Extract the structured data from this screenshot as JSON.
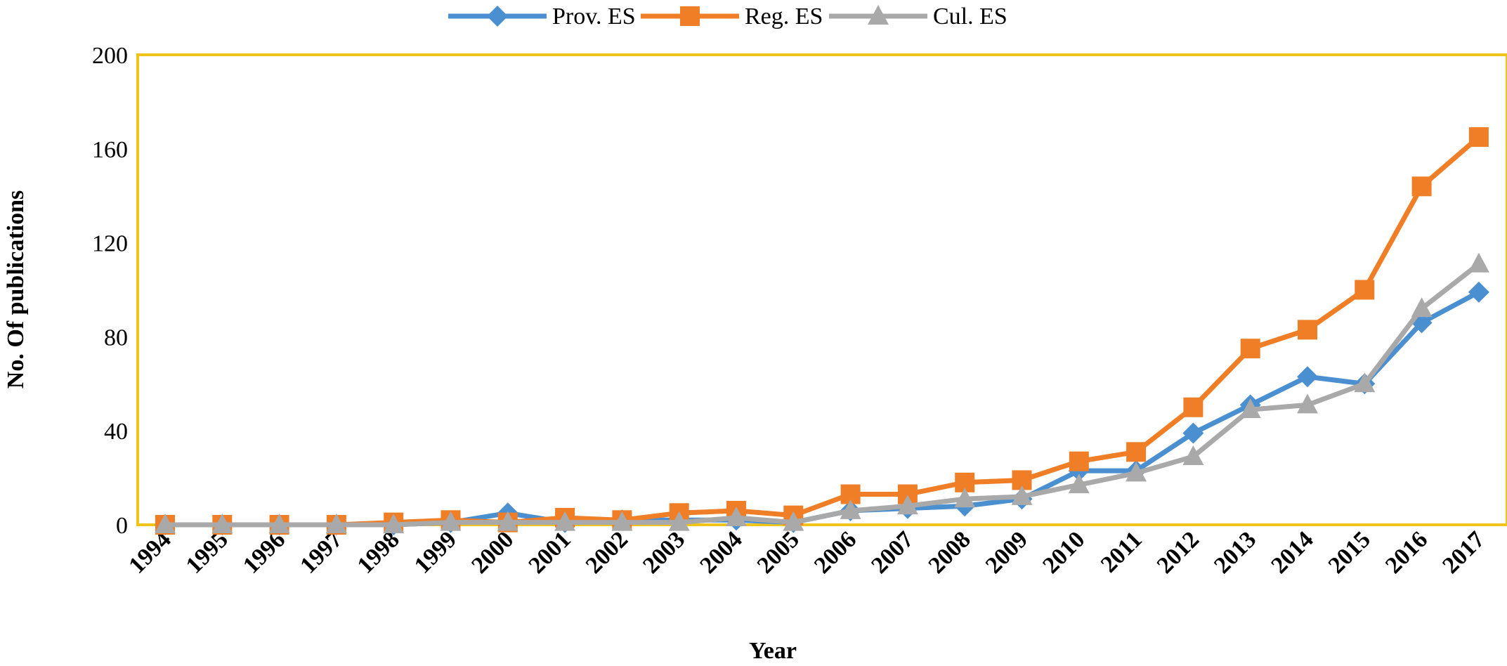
{
  "chart_data": {
    "type": "line",
    "xlabel": "Year",
    "ylabel": "No. Of publications",
    "ylim": [
      0,
      200
    ],
    "yticks": [
      0,
      40,
      80,
      120,
      160,
      200
    ],
    "grid": false,
    "legend_position": "top",
    "categories": [
      "1994",
      "1995",
      "1996",
      "1997",
      "1998",
      "1999",
      "2000",
      "2001",
      "2002",
      "2003",
      "2004",
      "2005",
      "2006",
      "2007",
      "2008",
      "2009",
      "2010",
      "2011",
      "2012",
      "2013",
      "2014",
      "2015",
      "2016",
      "2017"
    ],
    "series": [
      {
        "name": "Prov. ES",
        "color": "#4a8fd0",
        "marker": "diamond",
        "values": [
          0,
          0,
          0,
          0,
          0,
          1,
          5,
          1,
          2,
          2,
          2,
          1,
          6,
          7,
          8,
          11,
          23,
          23,
          39,
          51,
          63,
          60,
          86,
          99
        ]
      },
      {
        "name": "Reg. ES",
        "color": "#f07e26",
        "marker": "square",
        "values": [
          0,
          0,
          0,
          0,
          1,
          2,
          1,
          3,
          2,
          5,
          6,
          4,
          13,
          13,
          18,
          19,
          27,
          31,
          50,
          75,
          83,
          100,
          144,
          165
        ]
      },
      {
        "name": "Cul. ES",
        "color": "#a9a9a9",
        "marker": "triangle",
        "values": [
          0,
          0,
          0,
          0,
          0,
          1,
          1,
          1,
          1,
          1,
          3,
          1,
          6,
          8,
          11,
          12,
          17,
          22,
          29,
          49,
          51,
          60,
          92,
          111
        ]
      }
    ],
    "plot_border_color": "#f0c419"
  }
}
